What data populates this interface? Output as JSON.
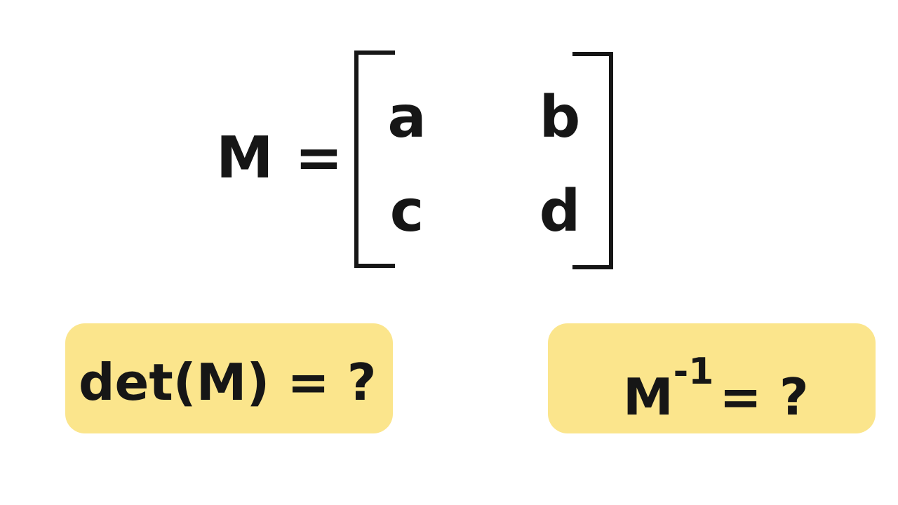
{
  "equation": {
    "lhs": "M =",
    "matrix": {
      "rows": [
        [
          "a",
          "b"
        ],
        [
          "c",
          "d"
        ]
      ]
    }
  },
  "questions": {
    "det_label": "det(M) = ?",
    "inverse_base": "M",
    "inverse_exponent": "-1",
    "inverse_rhs": "= ?"
  },
  "colors": {
    "text": "#161616",
    "highlight": "#fbe58c",
    "background": "#ffffff"
  }
}
